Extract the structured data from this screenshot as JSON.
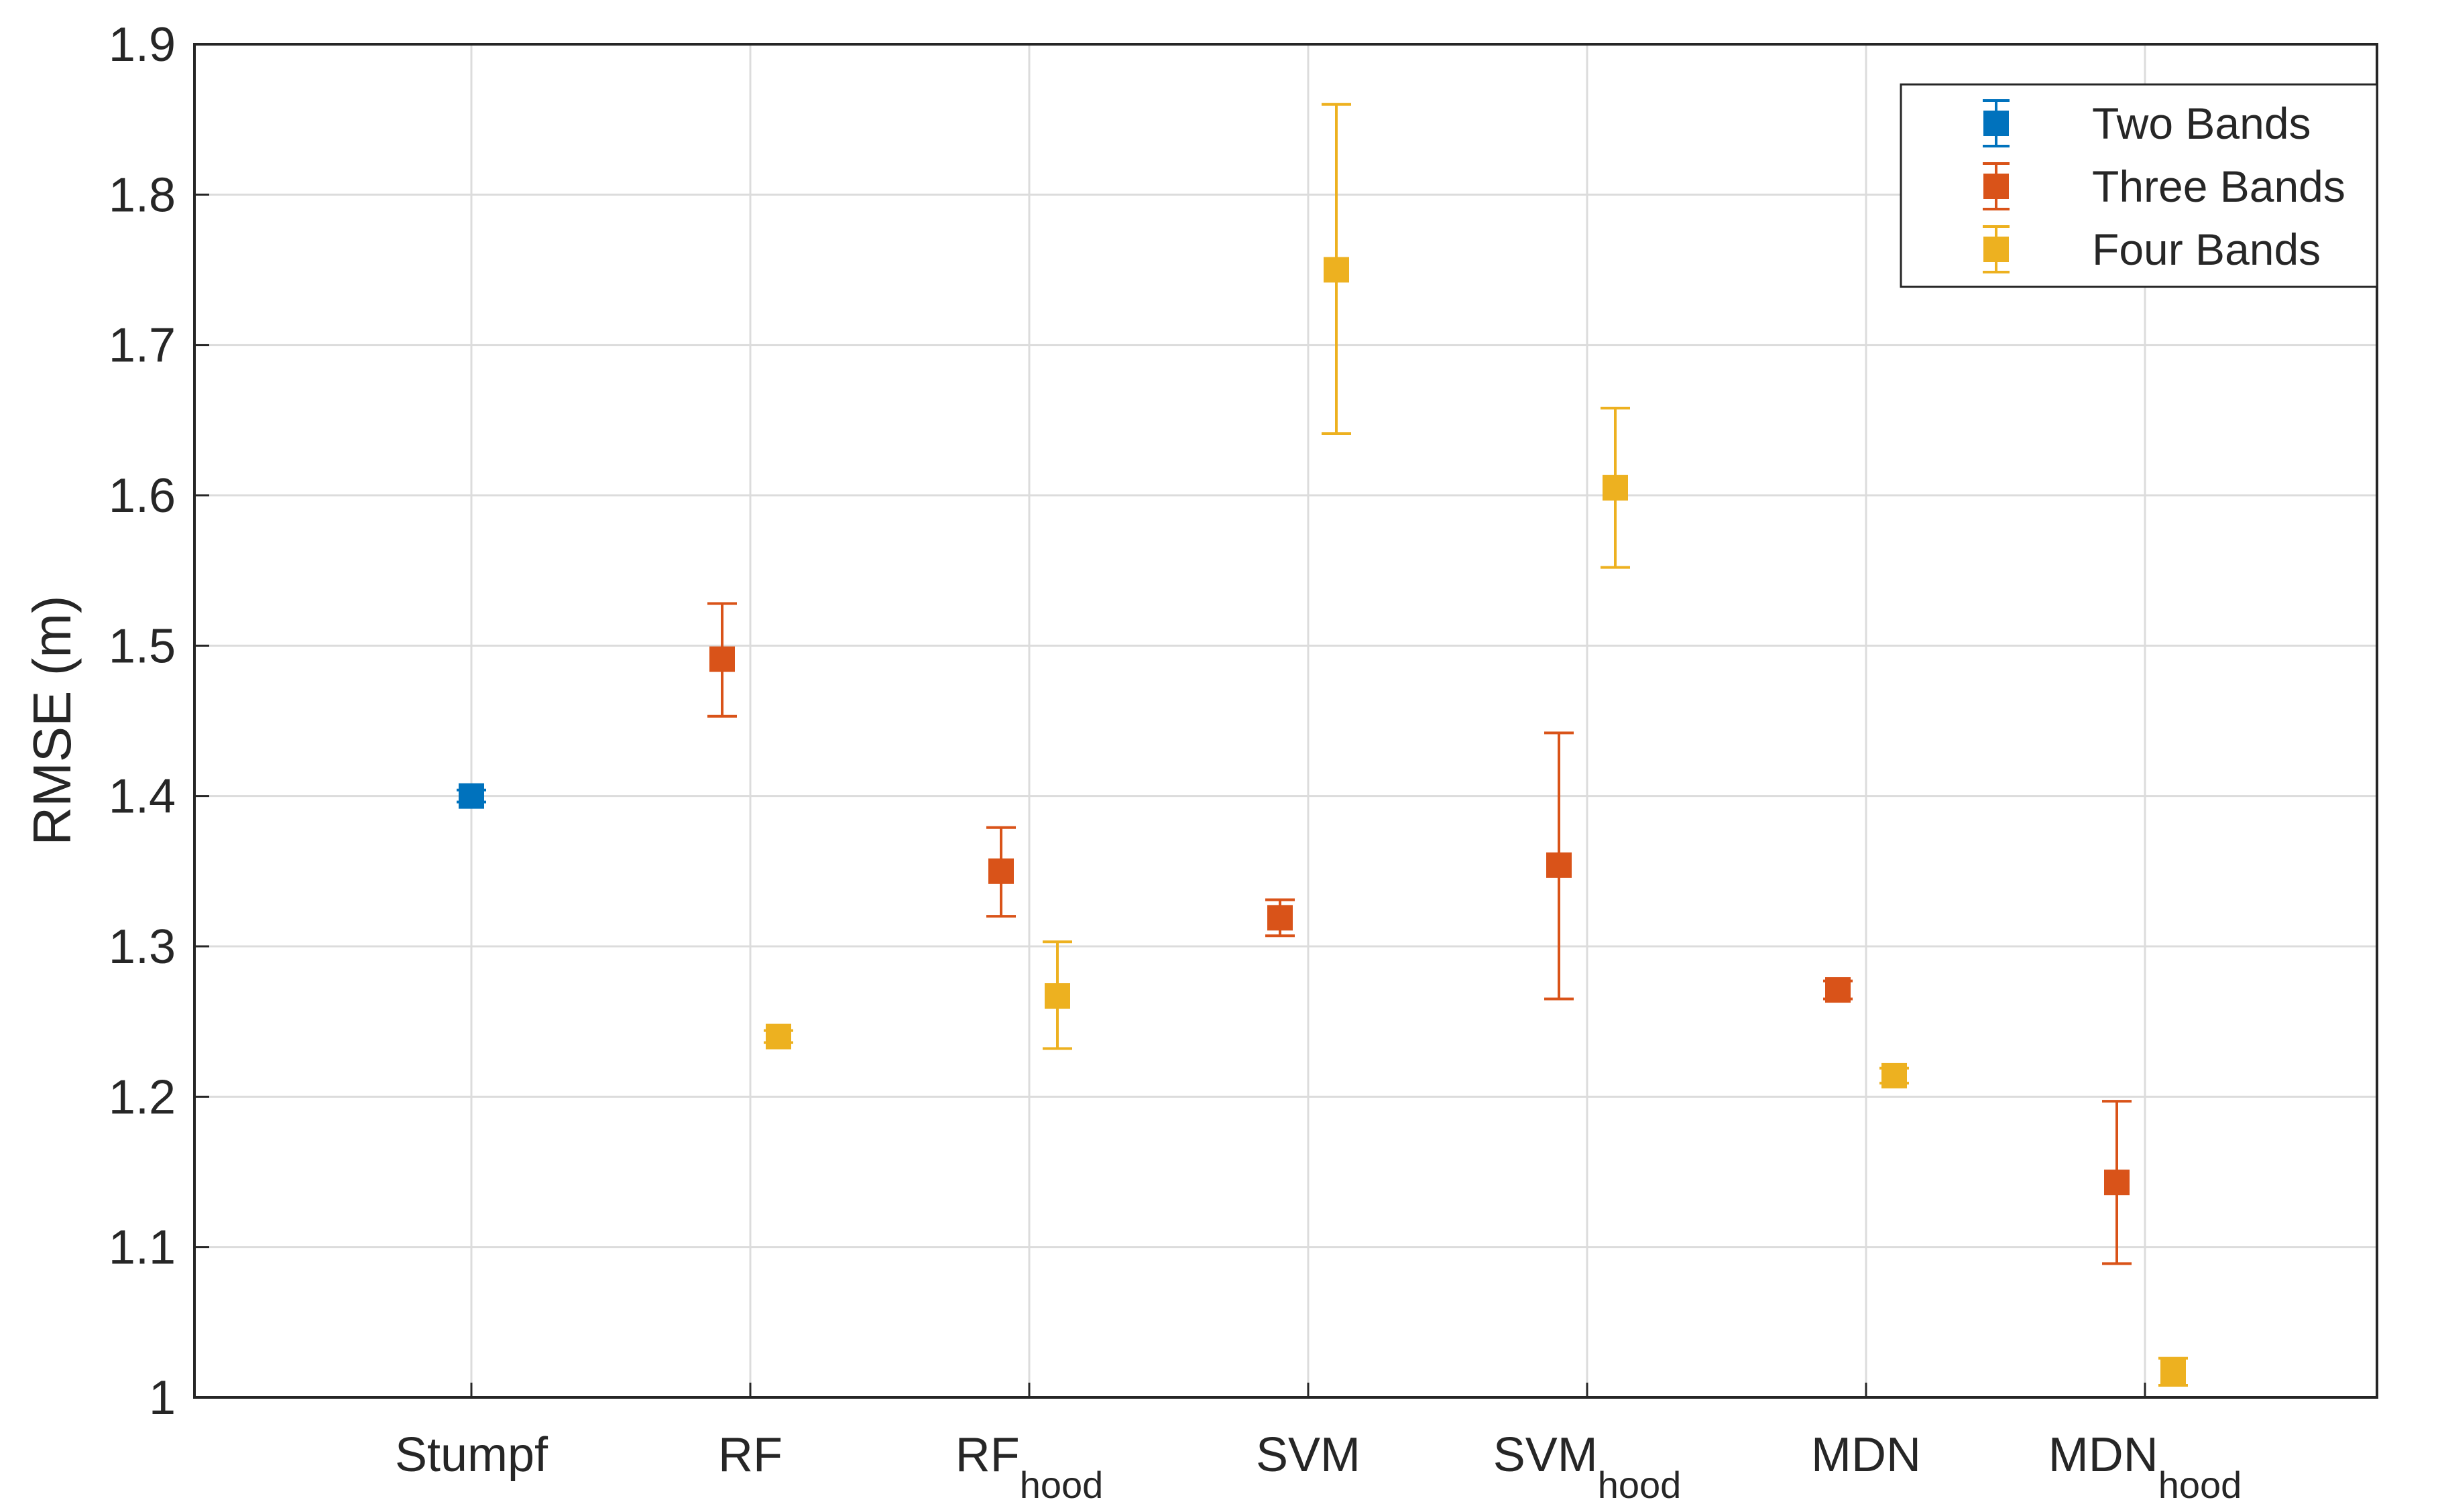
{
  "chart_data": {
    "type": "scatter",
    "subtype": "errorbar",
    "title": "",
    "xlabel": "",
    "ylabel": "RMSE (m)",
    "ylim": [
      1,
      1.9
    ],
    "yticks": [
      1,
      1.1,
      1.2,
      1.3,
      1.4,
      1.5,
      1.6,
      1.7,
      1.8,
      1.9
    ],
    "ytick_labels": [
      "1",
      "1.1",
      "1.2",
      "1.3",
      "1.4",
      "1.5",
      "1.6",
      "1.7",
      "1.8",
      "1.9"
    ],
    "grid": true,
    "legend_position": "top-right",
    "categories": [
      {
        "base": "Stumpf",
        "sub": ""
      },
      {
        "base": "RF",
        "sub": ""
      },
      {
        "base": "RF",
        "sub": "hood"
      },
      {
        "base": "SVM",
        "sub": ""
      },
      {
        "base": "SVM",
        "sub": "hood"
      },
      {
        "base": "MDN",
        "sub": ""
      },
      {
        "base": "MDN",
        "sub": "hood"
      }
    ],
    "series": [
      {
        "name": "Two Bands",
        "color": "#0072BD",
        "points": [
          {
            "category": 0,
            "value": 1.4,
            "lower": 1.396,
            "upper": 1.404
          }
        ]
      },
      {
        "name": "Three Bands",
        "color": "#D95319",
        "points": [
          {
            "category": 1,
            "value": 1.491,
            "lower": 1.453,
            "upper": 1.528
          },
          {
            "category": 2,
            "value": 1.35,
            "lower": 1.32,
            "upper": 1.379
          },
          {
            "category": 3,
            "value": 1.319,
            "lower": 1.307,
            "upper": 1.331
          },
          {
            "category": 4,
            "value": 1.354,
            "lower": 1.265,
            "upper": 1.442
          },
          {
            "category": 5,
            "value": 1.271,
            "lower": 1.265,
            "upper": 1.277
          },
          {
            "category": 6,
            "value": 1.143,
            "lower": 1.089,
            "upper": 1.197
          }
        ]
      },
      {
        "name": "Four Bands",
        "color": "#EDB120",
        "points": [
          {
            "category": 1,
            "value": 1.24,
            "lower": 1.236,
            "upper": 1.244
          },
          {
            "category": 2,
            "value": 1.267,
            "lower": 1.232,
            "upper": 1.303
          },
          {
            "category": 3,
            "value": 1.75,
            "lower": 1.641,
            "upper": 1.86
          },
          {
            "category": 4,
            "value": 1.605,
            "lower": 1.552,
            "upper": 1.658
          },
          {
            "category": 5,
            "value": 1.214,
            "lower": 1.209,
            "upper": 1.219
          },
          {
            "category": 6,
            "value": 1.017,
            "lower": 1.008,
            "upper": 1.026
          }
        ]
      }
    ]
  }
}
